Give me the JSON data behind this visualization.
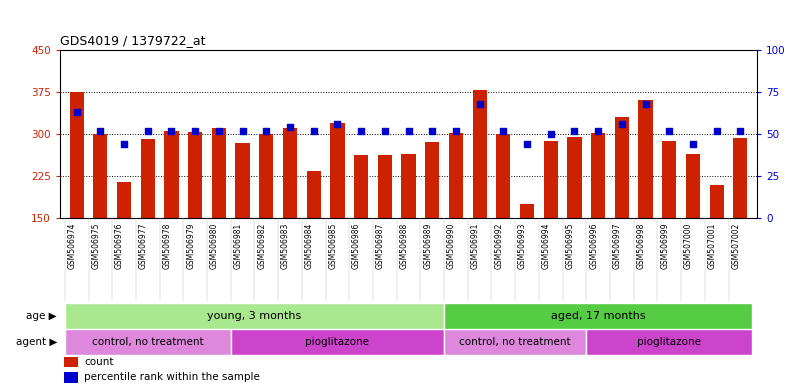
{
  "title": "GDS4019 / 1379722_at",
  "samples": [
    "GSM506974",
    "GSM506975",
    "GSM506976",
    "GSM506977",
    "GSM506978",
    "GSM506979",
    "GSM506980",
    "GSM506981",
    "GSM506982",
    "GSM506983",
    "GSM506984",
    "GSM506985",
    "GSM506986",
    "GSM506987",
    "GSM506988",
    "GSM506989",
    "GSM506990",
    "GSM506991",
    "GSM506992",
    "GSM506993",
    "GSM506994",
    "GSM506995",
    "GSM506996",
    "GSM506997",
    "GSM506998",
    "GSM506999",
    "GSM507000",
    "GSM507001",
    "GSM507002"
  ],
  "counts": [
    375,
    300,
    215,
    292,
    305,
    303,
    310,
    284,
    300,
    310,
    235,
    320,
    263,
    263,
    265,
    285,
    302,
    378,
    300,
    175,
    288,
    295,
    302,
    330,
    360,
    288,
    265,
    210,
    293
  ],
  "percentile_ranks": [
    63,
    52,
    44,
    52,
    52,
    52,
    52,
    52,
    52,
    54,
    52,
    56,
    52,
    52,
    52,
    52,
    52,
    68,
    52,
    44,
    50,
    52,
    52,
    56,
    68,
    52,
    44,
    52,
    52
  ],
  "bar_color": "#cc2200",
  "dot_color": "#0000cc",
  "ylim_left": [
    150,
    450
  ],
  "yticks_left": [
    150,
    225,
    300,
    375,
    450
  ],
  "ylim_right": [
    0,
    100
  ],
  "yticks_right": [
    0,
    25,
    50,
    75,
    100
  ],
  "plot_bg": "#ffffff",
  "label_bg": "#d8d8d8",
  "age_groups": [
    {
      "label": "young, 3 months",
      "start": 0,
      "end": 16,
      "color": "#aae890"
    },
    {
      "label": "aged, 17 months",
      "start": 16,
      "end": 29,
      "color": "#55cc44"
    }
  ],
  "agent_groups": [
    {
      "label": "control, no treatment",
      "start": 0,
      "end": 7,
      "color": "#dd88dd"
    },
    {
      "label": "pioglitazone",
      "start": 7,
      "end": 16,
      "color": "#cc44cc"
    },
    {
      "label": "control, no treatment",
      "start": 16,
      "end": 22,
      "color": "#dd88dd"
    },
    {
      "label": "pioglitazone",
      "start": 22,
      "end": 29,
      "color": "#cc44cc"
    }
  ],
  "grid_lines": [
    225,
    300,
    375
  ],
  "legend_items": [
    {
      "label": "count",
      "color": "#cc2200"
    },
    {
      "label": "percentile rank within the sample",
      "color": "#0000cc"
    }
  ]
}
